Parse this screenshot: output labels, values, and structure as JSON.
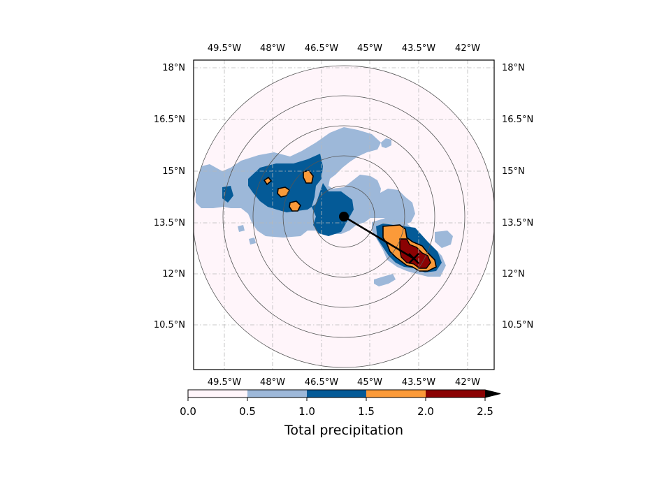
{
  "map": {
    "lon_ticks": [
      "49.5°W",
      "48°W",
      "46.5°W",
      "45°W",
      "43.5°W",
      "42°W"
    ],
    "lat_ticks": [
      "18°N",
      "16.5°N",
      "15°N",
      "13.5°N",
      "12°N",
      "10.5°N"
    ],
    "gridlines": "dash-dot",
    "range_rings": 5,
    "storm_center": {
      "lon": -45.7,
      "lat": 13.7
    },
    "storm_track_end": {
      "lon": -43.6,
      "lat": 12.5
    }
  },
  "colorbar": {
    "label": "Total precipitation",
    "ticks": [
      "0.0",
      "0.5",
      "1.0",
      "1.5",
      "2.0",
      "2.5"
    ],
    "bins": [
      {
        "from": 0.0,
        "to": 0.5,
        "color": "#fff5fa"
      },
      {
        "from": 0.5,
        "to": 1.0,
        "color": "#9db8d9"
      },
      {
        "from": 1.0,
        "to": 1.5,
        "color": "#045a97"
      },
      {
        "from": 1.5,
        "to": 2.0,
        "color": "#fb9a39"
      },
      {
        "from": 2.0,
        "to": 2.5,
        "color": "#8b0203"
      }
    ],
    "extend": "max"
  }
}
